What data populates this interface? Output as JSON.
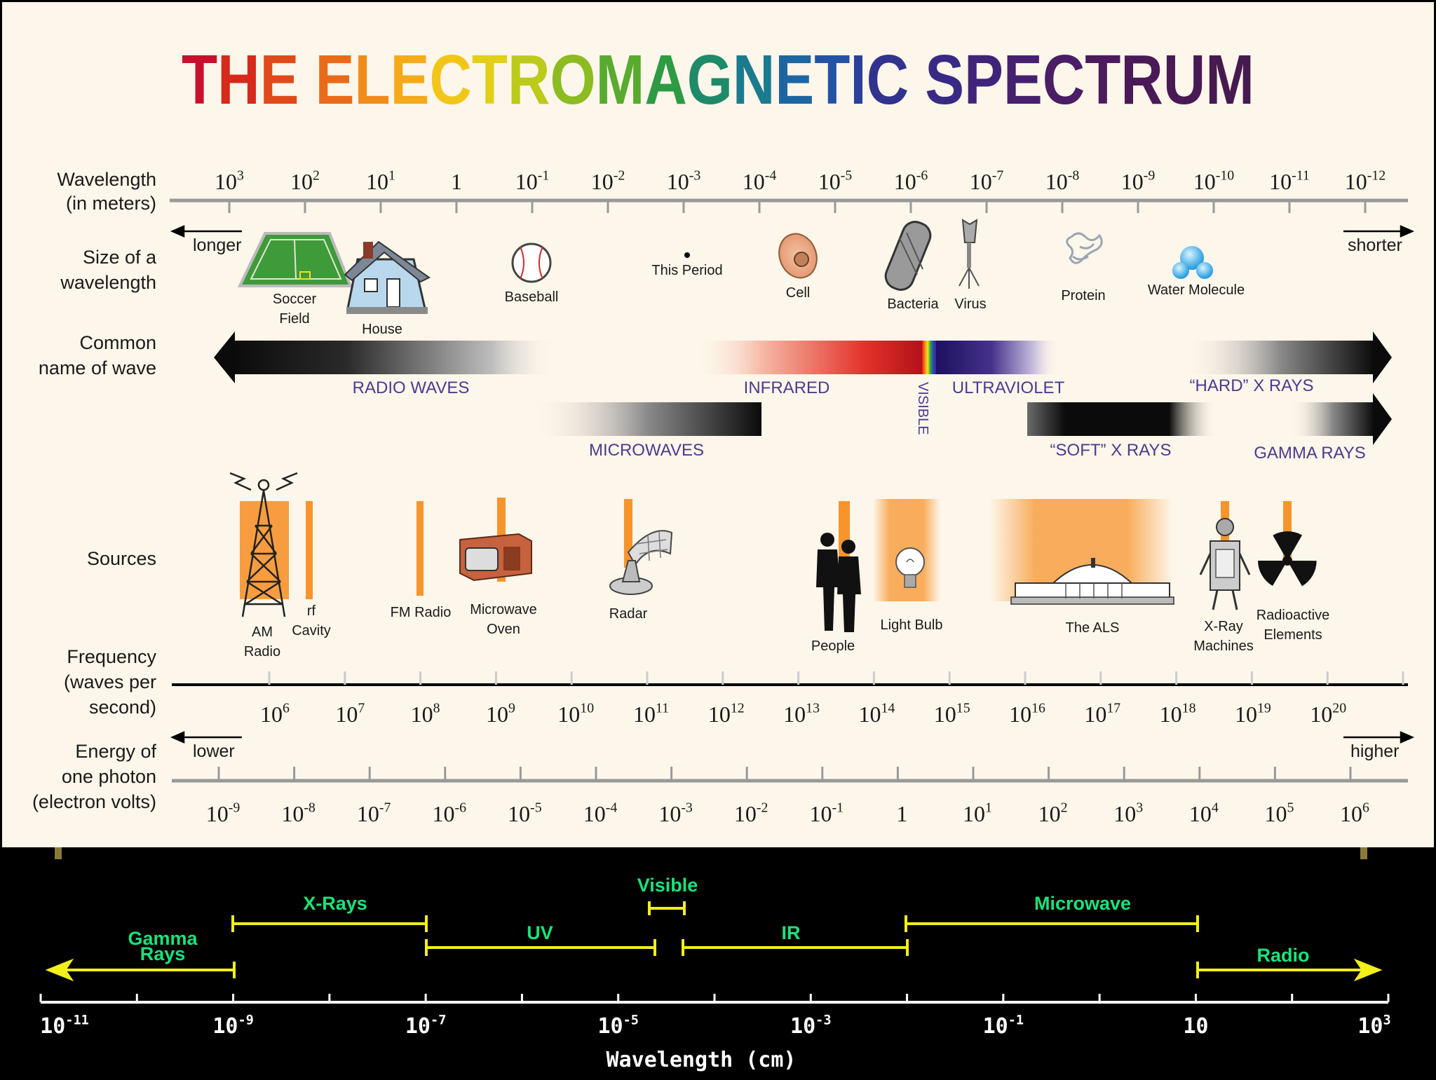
{
  "title": "THE ELECTROMAGNETIC SPECTRUM",
  "title_colors": [
    "#c8102e",
    "#d52a1c",
    "#e04a1a",
    "#ea6a1a",
    "#f08c1a",
    "#f4aa19",
    "#f2c619",
    "#e2cf18",
    "#bcca1a",
    "#8cbc22",
    "#58ab2e",
    "#2f9a44",
    "#1f8a6a",
    "#1a7a8e",
    "#1e66a2",
    "#2452a4",
    "#2a409c",
    "#31338f",
    "#392a85",
    "#402479",
    "#45206e",
    "#4a1d64",
    "#4b1b5e",
    "#4a1a58",
    "#481a53",
    "#461a4f",
    "#441a4b",
    "#421a48"
  ],
  "row_labels": {
    "wavelength": [
      "Wavelength",
      "(in meters)"
    ],
    "size": [
      "Size of a",
      "wavelength"
    ],
    "common": [
      "Common",
      "name of wave"
    ],
    "sources": [
      "Sources"
    ],
    "frequency": [
      "Frequency",
      "(waves per",
      "second)"
    ],
    "energy": [
      "Energy of",
      "one photon",
      "(electron volts)"
    ]
  },
  "direction": {
    "longer": "longer",
    "shorter": "shorter",
    "lower": "lower",
    "higher": "higher"
  },
  "wavelength_ticks": [
    {
      "b": "10",
      "e": "3"
    },
    {
      "b": "10",
      "e": "2"
    },
    {
      "b": "10",
      "e": "1"
    },
    {
      "b": "1",
      "e": ""
    },
    {
      "b": "10",
      "e": "-1"
    },
    {
      "b": "10",
      "e": "-2"
    },
    {
      "b": "10",
      "e": "-3"
    },
    {
      "b": "10",
      "e": "-4"
    },
    {
      "b": "10",
      "e": "-5"
    },
    {
      "b": "10",
      "e": "-6"
    },
    {
      "b": "10",
      "e": "-7"
    },
    {
      "b": "10",
      "e": "-8"
    },
    {
      "b": "10",
      "e": "-9"
    },
    {
      "b": "10",
      "e": "-10"
    },
    {
      "b": "10",
      "e": "-11"
    },
    {
      "b": "10",
      "e": "-12"
    }
  ],
  "size_objects": {
    "soccer": [
      "Soccer",
      "Field"
    ],
    "house": "House",
    "baseball": "Baseball",
    "period": "This Period",
    "cell": "Cell",
    "bacteria": "Bacteria",
    "virus": "Virus",
    "protein": "Protein",
    "water": "Water Molecule"
  },
  "waves": {
    "radio": "RADIO WAVES",
    "infrared": "INFRARED",
    "visible": "VISIBLE",
    "ultraviolet": "ULTRAVIOLET",
    "hard_xrays": "“HARD” X RAYS",
    "microwaves": "MICROWAVES",
    "soft_xrays": "“SOFT” X RAYS",
    "gamma": "GAMMA RAYS"
  },
  "sources": {
    "am_radio": [
      "AM",
      "Radio"
    ],
    "rf_cavity": [
      "rf",
      "Cavity"
    ],
    "fm_radio": "FM Radio",
    "microwave_oven": [
      "Microwave",
      "Oven"
    ],
    "radar": "Radar",
    "people": "People",
    "light_bulb": "Light Bulb",
    "als": "The ALS",
    "xray": [
      "X-Ray",
      "Machines"
    ],
    "radioactive": [
      "Radioactive",
      "Elements"
    ]
  },
  "frequency_ticks": [
    {
      "b": "10",
      "e": "6"
    },
    {
      "b": "10",
      "e": "7"
    },
    {
      "b": "10",
      "e": "8"
    },
    {
      "b": "10",
      "e": "9"
    },
    {
      "b": "10",
      "e": "10"
    },
    {
      "b": "10",
      "e": "11"
    },
    {
      "b": "10",
      "e": "12"
    },
    {
      "b": "10",
      "e": "13"
    },
    {
      "b": "10",
      "e": "14"
    },
    {
      "b": "10",
      "e": "15"
    },
    {
      "b": "10",
      "e": "16"
    },
    {
      "b": "10",
      "e": "17"
    },
    {
      "b": "10",
      "e": "18"
    },
    {
      "b": "10",
      "e": "19"
    },
    {
      "b": "10",
      "e": "20"
    }
  ],
  "energy_ticks": [
    {
      "b": "10",
      "e": "-9"
    },
    {
      "b": "10",
      "e": "-8"
    },
    {
      "b": "10",
      "e": "-7"
    },
    {
      "b": "10",
      "e": "-6"
    },
    {
      "b": "10",
      "e": "-5"
    },
    {
      "b": "10",
      "e": "-4"
    },
    {
      "b": "10",
      "e": "-3"
    },
    {
      "b": "10",
      "e": "-2"
    },
    {
      "b": "10",
      "e": "-1"
    },
    {
      "b": "1",
      "e": ""
    },
    {
      "b": "10",
      "e": "1"
    },
    {
      "b": "10",
      "e": "2"
    },
    {
      "b": "10",
      "e": "3"
    },
    {
      "b": "10",
      "e": "4"
    },
    {
      "b": "10",
      "e": "5"
    },
    {
      "b": "10",
      "e": "6"
    }
  ],
  "bottom": {
    "axis_label": "Wavelength (cm)",
    "ticks": [
      {
        "b": "10",
        "e": "-11"
      },
      {
        "b": "10",
        "e": "-9"
      },
      {
        "b": "10",
        "e": "-7"
      },
      {
        "b": "10",
        "e": "-5"
      },
      {
        "b": "10",
        "e": "-3"
      },
      {
        "b": "10",
        "e": "-1"
      },
      {
        "b": "10",
        "e": ""
      },
      {
        "b": "10",
        "e": "3"
      }
    ],
    "bands": {
      "gamma": [
        "Gamma",
        "Rays"
      ],
      "xrays": "X-Rays",
      "uv": "UV",
      "visible": "Visible",
      "ir": "IR",
      "microwave": "Microwave",
      "radio": "Radio"
    },
    "label_color": "#19e37a",
    "bracket_color": "#f2ef1b"
  },
  "colors": {
    "panel_bg": "#fdf6ea",
    "frame": "#000000",
    "accent_orange": "#f7942c",
    "wave_text": "#4b3b8f"
  }
}
